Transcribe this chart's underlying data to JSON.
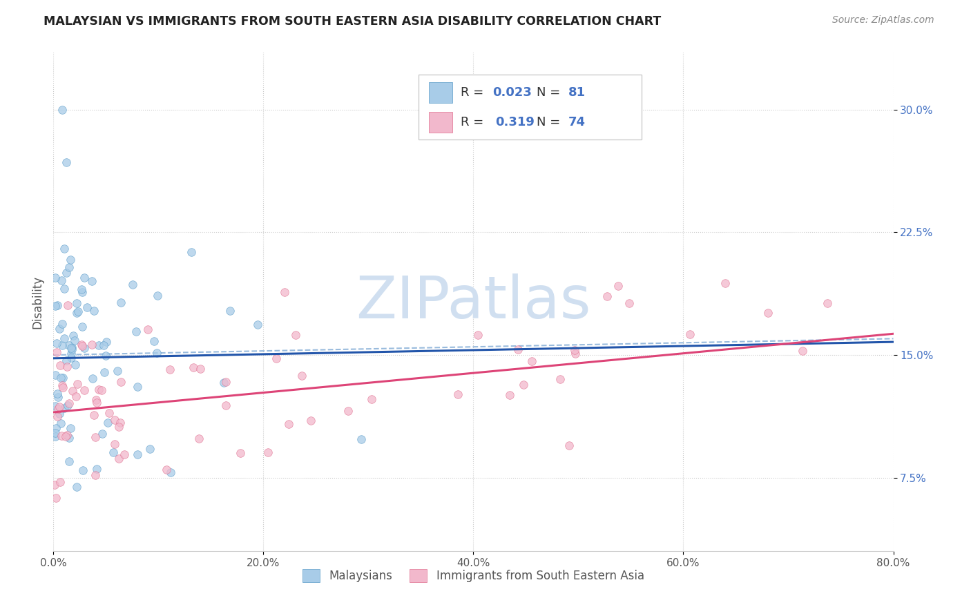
{
  "title": "MALAYSIAN VS IMMIGRANTS FROM SOUTH EASTERN ASIA DISABILITY CORRELATION CHART",
  "source": "Source: ZipAtlas.com",
  "ylabel": "Disability",
  "xlim": [
    0.0,
    0.8
  ],
  "ylim": [
    0.03,
    0.335
  ],
  "xticks": [
    0.0,
    0.2,
    0.4,
    0.6,
    0.8
  ],
  "xtick_labels": [
    "0.0%",
    "20.0%",
    "40.0%",
    "60.0%",
    "80.0%"
  ],
  "yticks": [
    0.075,
    0.15,
    0.225,
    0.3
  ],
  "ytick_labels": [
    "7.5%",
    "15.0%",
    "22.5%",
    "30.0%"
  ],
  "blue_fill": "#a8cce8",
  "blue_edge": "#5b9dc9",
  "pink_fill": "#f2b8cc",
  "pink_edge": "#e07090",
  "line_blue_color": "#2255aa",
  "line_pink_color": "#dd4477",
  "line_dash_color": "#99bbdd",
  "watermark_text": "ZIPatlas",
  "watermark_color": "#d0dff0",
  "grid_color": "#cccccc",
  "title_color": "#222222",
  "source_color": "#888888",
  "ytick_color": "#4472c4",
  "xtick_color": "#555555",
  "ylabel_color": "#555555",
  "legend_edge_color": "#cccccc",
  "bottom_legend_color": "#555555",
  "R1": "0.023",
  "N1": "81",
  "R2": "0.319",
  "N2": "74",
  "seed_mal": 1234,
  "seed_imm": 5678
}
